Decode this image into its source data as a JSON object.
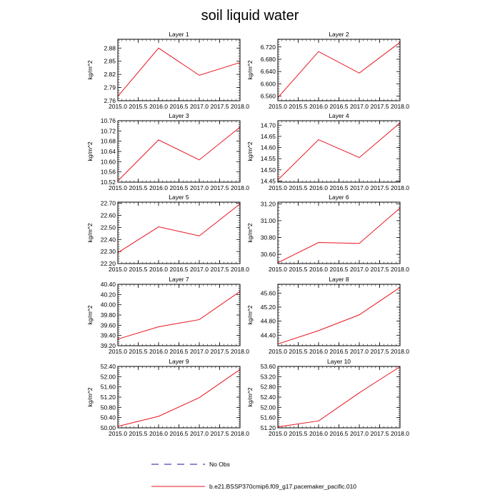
{
  "figure": {
    "title": "soil liquid water",
    "colors": {
      "model_line": "#e8141c",
      "obs_line": "#1a1a9a",
      "axes": "#000000"
    }
  },
  "legend": {
    "obs_label": "No Obs",
    "model_label": "b.e21.BSSP370cmip6.f09_g17.pacemaker_pacific.010"
  },
  "chart_data": [
    {
      "type": "line",
      "title": "Layer 1",
      "ylabel": "kg/m^2",
      "x": [
        2015,
        2016,
        2017,
        2018
      ],
      "series": [
        {
          "values": [
            2.77,
            2.88,
            2.818,
            2.847
          ]
        }
      ],
      "xlim": [
        2015,
        2018
      ],
      "ylim": [
        2.76,
        2.9
      ],
      "xticks": [
        "2015.0",
        "2015.5",
        "2016.0",
        "2016.5",
        "2017.0",
        "2017.5",
        "2018.0"
      ],
      "yticks": [
        "2.76",
        "2.79",
        "2.82",
        "2.85",
        "2.88"
      ],
      "grid": false
    },
    {
      "type": "line",
      "title": "Layer 2",
      "ylabel": "kg/m^2",
      "x": [
        2015,
        2016,
        2017,
        2018
      ],
      "series": [
        {
          "values": [
            6.555,
            6.705,
            6.635,
            6.735
          ]
        }
      ],
      "xlim": [
        2015,
        2018
      ],
      "ylim": [
        6.545,
        6.745
      ],
      "xticks": [
        "2015.0",
        "2015.5",
        "2016.0",
        "2016.5",
        "2017.0",
        "2017.5",
        "2018.0"
      ],
      "yticks": [
        "6.560",
        "6.600",
        "6.640",
        "6.680",
        "6.720"
      ],
      "grid": false
    },
    {
      "type": "line",
      "title": "Layer 3",
      "ylabel": "kg/m^2",
      "x": [
        2015,
        2016,
        2017,
        2018
      ],
      "series": [
        {
          "values": [
            10.525,
            10.685,
            10.607,
            10.735
          ]
        }
      ],
      "xlim": [
        2015,
        2018
      ],
      "ylim": [
        10.52,
        10.76
      ],
      "xticks": [
        "2015.0",
        "2015.5",
        "2016.0",
        "2016.5",
        "2017.0",
        "2017.5",
        "2018.0"
      ],
      "yticks": [
        "10.52",
        "10.56",
        "10.60",
        "10.64",
        "10.68",
        "10.72",
        "10.76"
      ],
      "grid": false
    },
    {
      "type": "line",
      "title": "Layer 4",
      "ylabel": "kg/m^2",
      "x": [
        2015,
        2016,
        2017,
        2018
      ],
      "series": [
        {
          "values": [
            14.455,
            14.635,
            14.555,
            14.71
          ]
        }
      ],
      "xlim": [
        2015,
        2018
      ],
      "ylim": [
        14.445,
        14.72
      ],
      "xticks": [
        "2015.0",
        "2015.5",
        "2016.0",
        "2016.5",
        "2017.0",
        "2017.5",
        "2018.0"
      ],
      "yticks": [
        "14.45",
        "14.50",
        "14.55",
        "14.60",
        "14.65",
        "14.70"
      ],
      "grid": false
    },
    {
      "type": "line",
      "title": "Layer 5",
      "ylabel": "kg/m^2",
      "x": [
        2015,
        2016,
        2017,
        2018
      ],
      "series": [
        {
          "values": [
            22.29,
            22.505,
            22.43,
            22.695
          ]
        }
      ],
      "xlim": [
        2015,
        2018
      ],
      "ylim": [
        22.2,
        22.71
      ],
      "xticks": [
        "2015.0",
        "2015.5",
        "2016.0",
        "2016.5",
        "2017.0",
        "2017.5",
        "2018.0"
      ],
      "yticks": [
        "22.20",
        "22.30",
        "22.40",
        "22.50",
        "22.60",
        "22.70"
      ],
      "grid": false
    },
    {
      "type": "line",
      "title": "Layer 6",
      "ylabel": "kg/m^2",
      "x": [
        2015,
        2016,
        2017,
        2018
      ],
      "series": [
        {
          "values": [
            30.5,
            30.74,
            30.73,
            31.15
          ]
        }
      ],
      "xlim": [
        2015,
        2018
      ],
      "ylim": [
        30.49,
        31.22
      ],
      "xticks": [
        "2015.0",
        "2015.5",
        "2016.0",
        "2016.5",
        "2017.0",
        "2017.5",
        "2018.0"
      ],
      "yticks": [
        "30.60",
        "30.80",
        "31.00",
        "31.20"
      ],
      "grid": false
    },
    {
      "type": "line",
      "title": "Layer 7",
      "ylabel": "kg/m^2",
      "x": [
        2015,
        2016,
        2017,
        2018
      ],
      "series": [
        {
          "values": [
            39.33,
            39.57,
            39.71,
            40.26
          ]
        }
      ],
      "xlim": [
        2015,
        2018
      ],
      "ylim": [
        39.2,
        40.4
      ],
      "xticks": [
        "2015.0",
        "2015.5",
        "2016.0",
        "2016.5",
        "2017.0",
        "2017.5",
        "2018.0"
      ],
      "yticks": [
        "39.20",
        "39.40",
        "39.60",
        "39.80",
        "40.00",
        "40.20",
        "40.40"
      ],
      "grid": false
    },
    {
      "type": "line",
      "title": "Layer 8",
      "ylabel": "kg/m^2",
      "x": [
        2015,
        2016,
        2017,
        2018
      ],
      "series": [
        {
          "values": [
            44.15,
            44.53,
            44.98,
            45.76
          ]
        }
      ],
      "xlim": [
        2015,
        2018
      ],
      "ylim": [
        44.1,
        45.85
      ],
      "xticks": [
        "2015.0",
        "2015.5",
        "2016.0",
        "2016.5",
        "2017.0",
        "2017.5",
        "2018.0"
      ],
      "yticks": [
        "44.40",
        "44.80",
        "45.20",
        "45.60"
      ],
      "grid": false
    },
    {
      "type": "line",
      "title": "Layer 9",
      "ylabel": "kg/m^2",
      "x": [
        2015,
        2016,
        2017,
        2018
      ],
      "series": [
        {
          "values": [
            50.06,
            50.45,
            51.18,
            52.28
          ]
        }
      ],
      "xlim": [
        2015,
        2018
      ],
      "ylim": [
        50.0,
        52.4
      ],
      "xticks": [
        "2015.0",
        "2015.5",
        "2016.0",
        "2016.5",
        "2017.0",
        "2017.5",
        "2018.0"
      ],
      "yticks": [
        "50.00",
        "50.40",
        "50.80",
        "51.20",
        "51.60",
        "52.00",
        "52.40"
      ],
      "grid": false
    },
    {
      "type": "line",
      "title": "Layer 10",
      "ylabel": "kg/m^2",
      "x": [
        2015,
        2016,
        2017,
        2018
      ],
      "series": [
        {
          "values": [
            51.24,
            51.47,
            52.57,
            53.59
          ]
        }
      ],
      "xlim": [
        2015,
        2018
      ],
      "ylim": [
        51.2,
        53.6
      ],
      "xticks": [
        "2015.0",
        "2015.5",
        "2016.0",
        "2016.5",
        "2017.0",
        "2017.5",
        "2018.0"
      ],
      "yticks": [
        "51.20",
        "51.60",
        "52.00",
        "52.40",
        "52.80",
        "53.20",
        "53.60"
      ],
      "grid": false
    }
  ]
}
